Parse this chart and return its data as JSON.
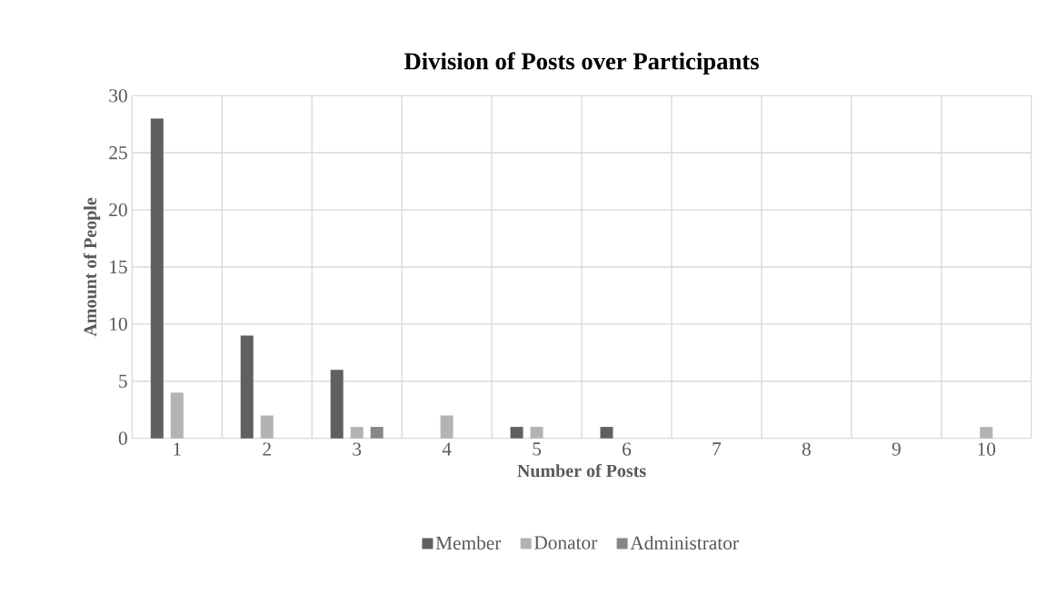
{
  "chart_data": {
    "type": "bar",
    "title": "Division of Posts over Participants",
    "xlabel": "Number of Posts",
    "ylabel": "Amount of People",
    "categories": [
      "1",
      "2",
      "3",
      "4",
      "5",
      "6",
      "7",
      "8",
      "9",
      "10"
    ],
    "series": [
      {
        "name": "Member",
        "color": "#606060",
        "values": [
          28,
          9,
          6,
          0,
          1,
          1,
          0,
          0,
          0,
          0
        ]
      },
      {
        "name": "Donator",
        "color": "#b3b3b3",
        "values": [
          4,
          2,
          1,
          2,
          1,
          0,
          0,
          0,
          0,
          1
        ]
      },
      {
        "name": "Administrator",
        "color": "#878787",
        "values": [
          0,
          0,
          1,
          0,
          0,
          0,
          0,
          0,
          0,
          0
        ]
      }
    ],
    "ylim": [
      0,
      30
    ],
    "yticks": [
      0,
      5,
      10,
      15,
      20,
      25,
      30
    ],
    "grid": true,
    "legend": "bottom"
  }
}
